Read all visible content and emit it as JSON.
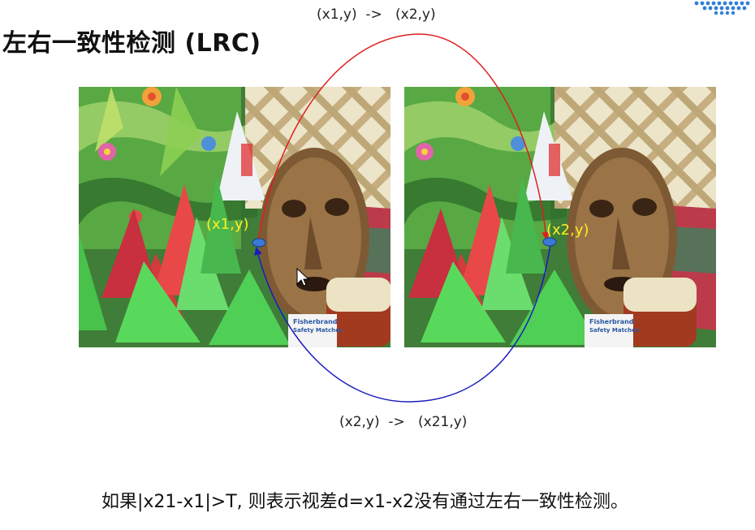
{
  "slide": {
    "title": "左右一致性检测 (LRC)",
    "top_equation": "(x1,y)  ->   (x2,y)",
    "bottom_equation": "(x2,y)  ->   (x21,y)",
    "caption": "如果|x21-x1|>T, 则表示视差d=x1-x2没有通过左右一致性检测。",
    "left_image": {
      "point_label": "(x1,y)",
      "sign_brand": "Fisherbrand",
      "sign_title": "Safety Matches"
    },
    "right_image": {
      "point_label": "(x2,y)",
      "sign_brand": "Fisherbrand",
      "sign_title": "Safety Matches"
    }
  },
  "colors": {
    "forward_arrow": "#dd1f1f",
    "backward_arrow": "#1b1bbf",
    "point_label": "#ffee22",
    "point_marker": "#3b78d8"
  }
}
